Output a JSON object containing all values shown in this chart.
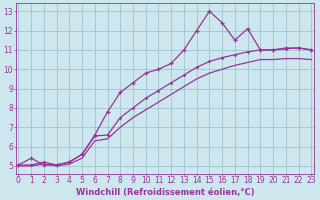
{
  "xlabel": "Windchill (Refroidissement éolien,°C)",
  "bg_color": "#cce8ee",
  "grid_color": "#99bbcc",
  "line_color": "#993399",
  "spine_color": "#993399",
  "x_ticks": [
    0,
    1,
    2,
    3,
    4,
    5,
    6,
    7,
    8,
    9,
    10,
    11,
    12,
    13,
    14,
    15,
    16,
    17,
    18,
    19,
    20,
    21,
    22,
    23
  ],
  "y_ticks": [
    5,
    6,
    7,
    8,
    9,
    10,
    11,
    12,
    13
  ],
  "xlim": [
    -0.2,
    23.2
  ],
  "ylim": [
    4.6,
    13.4
  ],
  "series1_x": [
    0,
    1,
    2,
    3,
    4,
    5,
    6,
    7,
    8,
    9,
    10,
    11,
    12,
    13,
    14,
    15,
    16,
    17,
    18,
    19,
    20,
    21,
    22,
    23
  ],
  "series1_y": [
    5.05,
    5.4,
    5.05,
    5.05,
    5.2,
    5.6,
    6.6,
    7.8,
    8.8,
    9.3,
    9.8,
    10.0,
    10.3,
    11.0,
    12.0,
    13.0,
    12.4,
    11.5,
    12.1,
    11.0,
    11.0,
    11.1,
    11.1,
    11.0
  ],
  "series2_x": [
    0,
    1,
    2,
    3,
    4,
    5,
    6,
    7,
    8,
    9,
    10,
    11,
    12,
    13,
    14,
    15,
    16,
    17,
    18,
    19,
    20,
    21,
    22,
    23
  ],
  "series2_y": [
    5.05,
    5.05,
    5.2,
    5.05,
    5.2,
    5.6,
    6.55,
    6.6,
    7.5,
    8.0,
    8.5,
    8.9,
    9.3,
    9.7,
    10.1,
    10.4,
    10.6,
    10.75,
    10.9,
    11.0,
    11.0,
    11.05,
    11.1,
    11.0
  ],
  "series3_x": [
    0,
    1,
    2,
    3,
    4,
    5,
    6,
    7,
    8,
    9,
    10,
    11,
    12,
    13,
    14,
    15,
    16,
    17,
    18,
    19,
    20,
    21,
    22,
    23
  ],
  "series3_y": [
    5.0,
    5.0,
    5.1,
    5.0,
    5.1,
    5.4,
    6.3,
    6.4,
    7.0,
    7.5,
    7.9,
    8.3,
    8.7,
    9.1,
    9.5,
    9.8,
    10.0,
    10.2,
    10.35,
    10.5,
    10.5,
    10.55,
    10.55,
    10.5
  ],
  "tick_fontsize": 5.5,
  "xlabel_fontsize": 6.0
}
